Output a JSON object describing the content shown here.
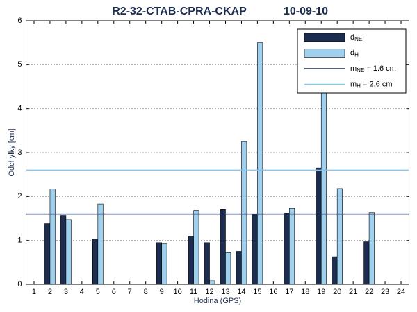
{
  "chart_data": {
    "type": "bar",
    "title": "R2-32-CTAB-CPRA-CKAP",
    "date": "10-09-10",
    "x_label": "Hodina (GPS)",
    "y_label": "Odchylky [cm]",
    "x": [
      1,
      2,
      3,
      4,
      5,
      6,
      7,
      8,
      9,
      10,
      11,
      12,
      13,
      14,
      15,
      16,
      17,
      18,
      19,
      20,
      21,
      22,
      23,
      24
    ],
    "xlim": [
      0.5,
      24.5
    ],
    "xticks": [
      1,
      2,
      3,
      4,
      5,
      6,
      7,
      8,
      9,
      10,
      11,
      12,
      13,
      14,
      15,
      16,
      17,
      18,
      19,
      20,
      21,
      22,
      23,
      24
    ],
    "ylim": [
      0,
      6
    ],
    "yticks": [
      0,
      1,
      2,
      3,
      4,
      5,
      6
    ],
    "grid": true,
    "legend": "top-right",
    "series": [
      {
        "name": "d",
        "name_sub": "NE",
        "color": "#1c2d4f",
        "values": [
          null,
          1.38,
          1.57,
          null,
          1.03,
          null,
          null,
          null,
          0.95,
          null,
          1.1,
          0.95,
          1.7,
          0.75,
          1.6,
          null,
          1.62,
          null,
          2.65,
          0.63,
          null,
          0.97,
          null,
          null
        ]
      },
      {
        "name": "d",
        "name_sub": "H",
        "color": "#9fd0ee",
        "values": [
          null,
          2.17,
          1.47,
          null,
          1.83,
          null,
          null,
          null,
          0.92,
          null,
          1.68,
          0.08,
          0.72,
          3.25,
          5.5,
          null,
          1.73,
          null,
          4.9,
          2.18,
          null,
          1.63,
          null,
          null
        ]
      }
    ],
    "reference_lines": [
      {
        "name": "m",
        "name_sub": "NE",
        "label": " = 1.6 cm",
        "value": 1.6,
        "color": "#1c2d4f"
      },
      {
        "name": "m",
        "name_sub": "H",
        "label": " = 2.6 cm",
        "value": 2.6,
        "color": "#87c8ee"
      }
    ]
  }
}
